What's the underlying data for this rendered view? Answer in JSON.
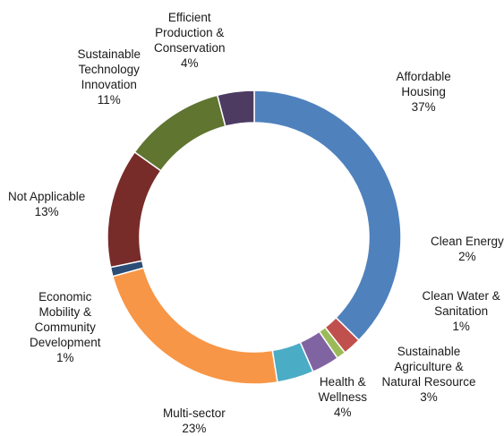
{
  "chart_data": {
    "type": "pie",
    "style": "donut",
    "slices": [
      {
        "key": "affordable_housing",
        "label_lines": [
          "Affordable",
          "Housing"
        ],
        "value": 37,
        "display": "37%",
        "color": "#4F81BD"
      },
      {
        "key": "clean_energy",
        "label_lines": [
          "Clean Energy"
        ],
        "value": 2,
        "display": "2%",
        "color": "#C0504D"
      },
      {
        "key": "clean_water",
        "label_lines": [
          "Clean Water &",
          "Sanitation"
        ],
        "value": 1,
        "display": "1%",
        "color": "#9BBB59"
      },
      {
        "key": "sustainable_agriculture",
        "label_lines": [
          "Sustainable",
          "Agriculture &",
          "Natural Resource"
        ],
        "value": 3,
        "display": "3%",
        "color": "#8064A2"
      },
      {
        "key": "health_wellness",
        "label_lines": [
          "Health &",
          "Wellness"
        ],
        "value": 4,
        "display": "4%",
        "color": "#4BACC6"
      },
      {
        "key": "multi_sector",
        "label_lines": [
          "Multi-sector"
        ],
        "value": 23,
        "display": "23%",
        "color": "#F79646"
      },
      {
        "key": "economic_mobility",
        "label_lines": [
          "Economic",
          "Mobility &",
          "Community",
          "Development"
        ],
        "value": 1,
        "display": "1%",
        "color": "#2C4D75"
      },
      {
        "key": "not_applicable",
        "label_lines": [
          "Not Applicable"
        ],
        "value": 13,
        "display": "13%",
        "color": "#772C2A"
      },
      {
        "key": "sustainable_technology",
        "label_lines": [
          "Sustainable",
          "Technology",
          "Innovation"
        ],
        "value": 11,
        "display": "11%",
        "color": "#5F7530"
      },
      {
        "key": "efficient_production",
        "label_lines": [
          "Efficient",
          "Production &",
          "Conservation"
        ],
        "value": 4,
        "display": "4%",
        "color": "#4D3B62"
      }
    ]
  }
}
